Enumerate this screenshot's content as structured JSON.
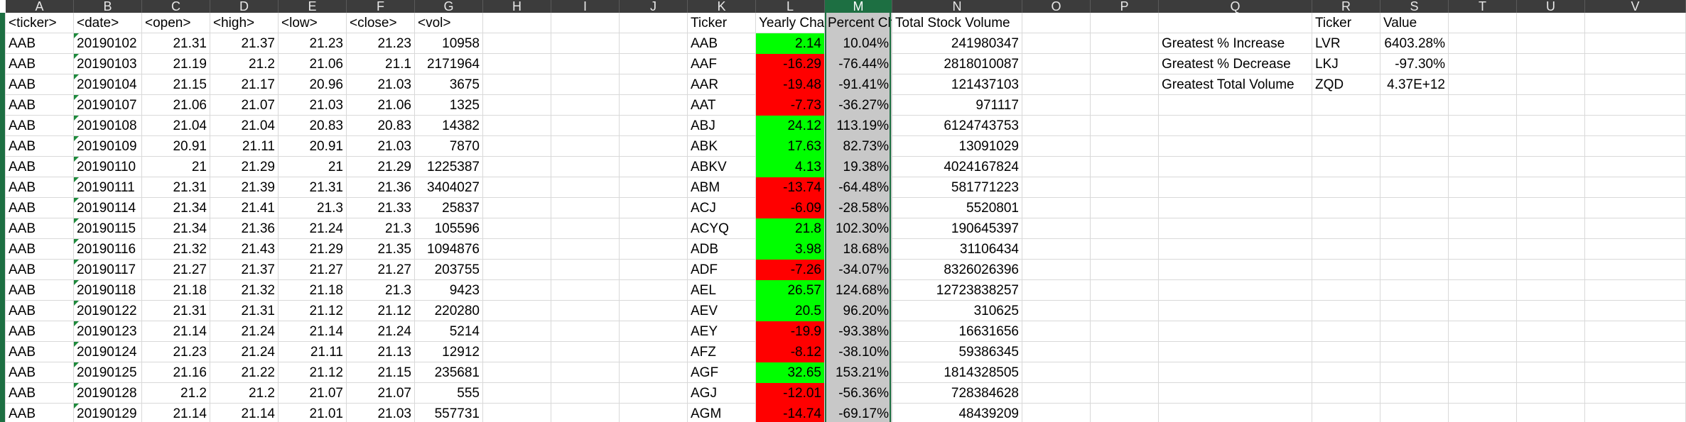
{
  "sheet": {
    "columns": [
      "A",
      "B",
      "C",
      "D",
      "E",
      "F",
      "G",
      "H",
      "I",
      "J",
      "K",
      "L",
      "M",
      "N",
      "O",
      "P",
      "Q",
      "R",
      "S",
      "T",
      "U",
      "V"
    ],
    "selected_column": "M",
    "colors": {
      "positive": "#00ff00",
      "negative": "#ff0000",
      "selected_fill": "#c8c8c8",
      "accent": "#1d6f42"
    },
    "raw_headers": [
      "<ticker>",
      "<date>",
      "<open>",
      "<high>",
      "<low>",
      "<close>",
      "<vol>"
    ],
    "raw_rows": [
      [
        "AAB",
        "20190102",
        "21.31",
        "21.37",
        "21.23",
        "21.23",
        "10958"
      ],
      [
        "AAB",
        "20190103",
        "21.19",
        "21.2",
        "21.06",
        "21.1",
        "2171964"
      ],
      [
        "AAB",
        "20190104",
        "21.15",
        "21.17",
        "20.96",
        "21.03",
        "3675"
      ],
      [
        "AAB",
        "20190107",
        "21.06",
        "21.07",
        "21.03",
        "21.06",
        "1325"
      ],
      [
        "AAB",
        "20190108",
        "21.04",
        "21.04",
        "20.83",
        "20.83",
        "14382"
      ],
      [
        "AAB",
        "20190109",
        "20.91",
        "21.11",
        "20.91",
        "21.03",
        "7870"
      ],
      [
        "AAB",
        "20190110",
        "21",
        "21.29",
        "21",
        "21.29",
        "1225387"
      ],
      [
        "AAB",
        "20190111",
        "21.31",
        "21.39",
        "21.31",
        "21.36",
        "3404027"
      ],
      [
        "AAB",
        "20190114",
        "21.34",
        "21.41",
        "21.3",
        "21.33",
        "25837"
      ],
      [
        "AAB",
        "20190115",
        "21.34",
        "21.36",
        "21.24",
        "21.3",
        "105596"
      ],
      [
        "AAB",
        "20190116",
        "21.32",
        "21.43",
        "21.29",
        "21.35",
        "1094876"
      ],
      [
        "AAB",
        "20190117",
        "21.27",
        "21.37",
        "21.27",
        "21.27",
        "203755"
      ],
      [
        "AAB",
        "20190118",
        "21.18",
        "21.32",
        "21.18",
        "21.3",
        "9423"
      ],
      [
        "AAB",
        "20190122",
        "21.31",
        "21.31",
        "21.12",
        "21.12",
        "220280"
      ],
      [
        "AAB",
        "20190123",
        "21.14",
        "21.24",
        "21.14",
        "21.24",
        "5214"
      ],
      [
        "AAB",
        "20190124",
        "21.23",
        "21.24",
        "21.11",
        "21.13",
        "12912"
      ],
      [
        "AAB",
        "20190125",
        "21.16",
        "21.22",
        "21.12",
        "21.15",
        "235681"
      ],
      [
        "AAB",
        "20190128",
        "21.2",
        "21.2",
        "21.07",
        "21.07",
        "555"
      ],
      [
        "AAB",
        "20190129",
        "21.14",
        "21.14",
        "21.01",
        "21.03",
        "557731"
      ]
    ],
    "summary_headers": [
      "Ticker",
      "Yearly Cha",
      "Percent Ch",
      "Total Stock Volume"
    ],
    "summary_rows": [
      [
        "AAB",
        "2.14",
        "10.04%",
        "241980347",
        "pos"
      ],
      [
        "AAF",
        "-16.29",
        "-76.44%",
        "2818010087",
        "neg"
      ],
      [
        "AAR",
        "-19.48",
        "-91.41%",
        "121437103",
        "neg"
      ],
      [
        "AAT",
        "-7.73",
        "-36.27%",
        "971117",
        "neg"
      ],
      [
        "ABJ",
        "24.12",
        "113.19%",
        "6124743753",
        "pos"
      ],
      [
        "ABK",
        "17.63",
        "82.73%",
        "13091029",
        "pos"
      ],
      [
        "ABKV",
        "4.13",
        "19.38%",
        "4024167824",
        "pos"
      ],
      [
        "ABM",
        "-13.74",
        "-64.48%",
        "581771223",
        "neg"
      ],
      [
        "ACJ",
        "-6.09",
        "-28.58%",
        "5520801",
        "neg"
      ],
      [
        "ACYQ",
        "21.8",
        "102.30%",
        "190645397",
        "pos"
      ],
      [
        "ADB",
        "3.98",
        "18.68%",
        "31106434",
        "pos"
      ],
      [
        "ADF",
        "-7.26",
        "-34.07%",
        "8326026396",
        "neg"
      ],
      [
        "AEL",
        "26.57",
        "124.68%",
        "12723838257",
        "pos"
      ],
      [
        "AEV",
        "20.5",
        "96.20%",
        "310625",
        "pos"
      ],
      [
        "AEY",
        "-19.9",
        "-93.38%",
        "16631656",
        "neg"
      ],
      [
        "AFZ",
        "-8.12",
        "-38.10%",
        "59386345",
        "neg"
      ],
      [
        "AGF",
        "32.65",
        "153.21%",
        "1814328505",
        "pos"
      ],
      [
        "AGJ",
        "-12.01",
        "-56.36%",
        "728384628",
        "neg"
      ],
      [
        "AGM",
        "-14.74",
        "-69.17%",
        "48439209",
        "neg"
      ]
    ],
    "greatest_headers": [
      "Ticker",
      "Value"
    ],
    "greatest_rows": [
      [
        "Greatest % Increase",
        "LVR",
        "6403.28%"
      ],
      [
        "Greatest % Decrease",
        "LKJ",
        "-97.30%"
      ],
      [
        "Greatest Total Volume",
        "ZQD",
        "4.37E+12"
      ]
    ]
  }
}
